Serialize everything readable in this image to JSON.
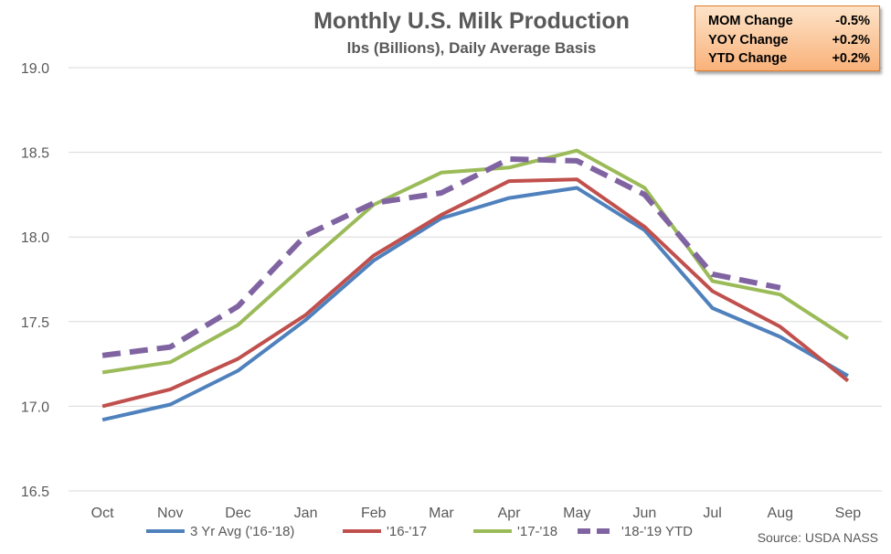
{
  "chart_data": {
    "type": "line",
    "title": "Monthly U.S. Milk Production",
    "subtitle": "lbs (Billions), Daily Average Basis",
    "categories": [
      "Oct",
      "Nov",
      "Dec",
      "Jan",
      "Feb",
      "Mar",
      "Apr",
      "May",
      "Jun",
      "Jul",
      "Aug",
      "Sep"
    ],
    "ylim": [
      16.5,
      19.0
    ],
    "yticks": [
      "16.5",
      "17.0",
      "17.5",
      "18.0",
      "18.5",
      "19.0"
    ],
    "grid": true,
    "legend_position": "bottom",
    "series": [
      {
        "name": "3 Yr Avg ('16-'18)",
        "color": "#4f81bd",
        "dashed": false,
        "values": [
          16.92,
          17.01,
          17.21,
          17.51,
          17.86,
          18.11,
          18.23,
          18.29,
          18.04,
          17.58,
          17.41,
          17.18
        ]
      },
      {
        "name": "'16-'17",
        "color": "#c0504d",
        "dashed": false,
        "values": [
          17.0,
          17.1,
          17.28,
          17.54,
          17.89,
          18.13,
          18.33,
          18.34,
          18.06,
          17.68,
          17.47,
          17.15
        ]
      },
      {
        "name": "'17-'18",
        "color": "#9bbb59",
        "dashed": false,
        "values": [
          17.2,
          17.26,
          17.48,
          17.84,
          18.19,
          18.38,
          18.41,
          18.51,
          18.29,
          17.74,
          17.66,
          17.4
        ]
      },
      {
        "name": "'18-'19 YTD",
        "color": "#8064a2",
        "dashed": true,
        "values": [
          17.3,
          17.35,
          17.59,
          18.01,
          18.2,
          18.26,
          18.46,
          18.45,
          18.25,
          17.78,
          17.7,
          null
        ]
      }
    ],
    "source": "Source: USDA NASS"
  },
  "stats_box": {
    "rows": [
      {
        "label": "MOM Change",
        "value": "-0.5%"
      },
      {
        "label": "YOY Change",
        "value": "+0.2%"
      },
      {
        "label": "YTD Change",
        "value": "+0.2%"
      }
    ]
  }
}
